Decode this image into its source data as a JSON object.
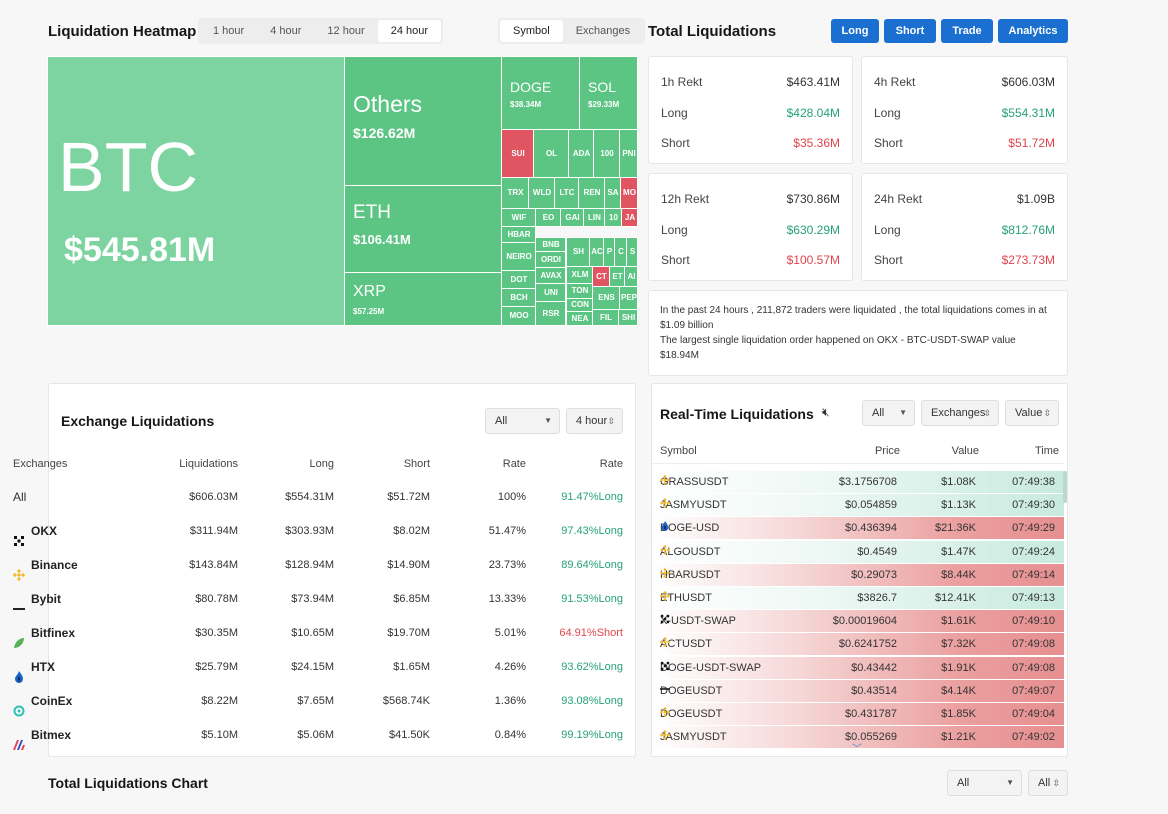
{
  "heatmap": {
    "title": "Liquidation Heatmap",
    "time_tabs": [
      "1 hour",
      "4 hour",
      "12 hour",
      "24 hour"
    ],
    "active_time": "24 hour",
    "mode_tabs": [
      "Symbol",
      "Exchanges"
    ],
    "active_mode": "Symbol",
    "tiles": {
      "btc": {
        "name": "BTC",
        "value": "$545.81M"
      },
      "others": {
        "name": "Others",
        "value": "$126.62M"
      },
      "eth": {
        "name": "ETH",
        "value": "$106.41M"
      },
      "xrp": {
        "name": "XRP",
        "value": "$57.25M"
      },
      "doge": {
        "name": "DOGE",
        "value": "$38.34M"
      },
      "sol": {
        "name": "SOL",
        "value": "$29.33M"
      },
      "small": [
        "SUI",
        "OL",
        "ADA",
        "100",
        "PNI",
        "TRX",
        "WLD",
        "LTC",
        "REN",
        "SA",
        "MO",
        "WIF",
        "EO",
        "GAI",
        "LIN",
        "10",
        "JA",
        "HBAR",
        "BNB",
        "SH",
        "AC",
        "P",
        "C",
        "S",
        "NEIRO",
        "ORDI",
        "XLM",
        "CT",
        "ET",
        "AI",
        "DOT",
        "AVAX",
        "TON",
        "ENS",
        "PEPE",
        "BCH",
        "UNI",
        "CON",
        "FIL",
        "MOO",
        "RSR",
        "NEA",
        "SHI"
      ]
    }
  },
  "total": {
    "title": "Total Liquidations",
    "buttons": [
      "Long",
      "Short",
      "Trade",
      "Analytics"
    ],
    "cards": [
      {
        "label": "1h Rekt",
        "total": "$463.41M",
        "long_label": "Long",
        "long": "$428.04M",
        "short_label": "Short",
        "short": "$35.36M"
      },
      {
        "label": "4h Rekt",
        "total": "$606.03M",
        "long_label": "Long",
        "long": "$554.31M",
        "short_label": "Short",
        "short": "$51.72M"
      },
      {
        "label": "12h Rekt",
        "total": "$730.86M",
        "long_label": "Long",
        "long": "$630.29M",
        "short_label": "Short",
        "short": "$100.57M"
      },
      {
        "label": "24h Rekt",
        "total": "$1.09B",
        "long_label": "Long",
        "long": "$812.76M",
        "short_label": "Short",
        "short": "$273.73M"
      }
    ],
    "summary_line1": "In the past 24 hours , 211,872 traders were liquidated , the total liquidations comes in at $1.09 billion",
    "summary_line2": "The largest single liquidation order happened on OKX - BTC-USDT-SWAP value $18.94M"
  },
  "exchange": {
    "title": "Exchange Liquidations",
    "filter": "All",
    "period": "4 hour",
    "headers": [
      "Exchanges",
      "Liquidations",
      "Long",
      "Short",
      "Rate",
      "Rate"
    ],
    "rows": [
      {
        "name": "All",
        "icon": "",
        "liq": "$606.03M",
        "long": "$554.31M",
        "short": "$51.72M",
        "rate": "100%",
        "rate2": "91.47%Long",
        "side": "long"
      },
      {
        "name": "OKX",
        "icon": "okx-icon",
        "liq": "$311.94M",
        "long": "$303.93M",
        "short": "$8.02M",
        "rate": "51.47%",
        "rate2": "97.43%Long",
        "side": "long"
      },
      {
        "name": "Binance",
        "icon": "binance-icon",
        "liq": "$143.84M",
        "long": "$128.94M",
        "short": "$14.90M",
        "rate": "23.73%",
        "rate2": "89.64%Long",
        "side": "long"
      },
      {
        "name": "Bybit",
        "icon": "bybit-icon",
        "liq": "$80.78M",
        "long": "$73.94M",
        "short": "$6.85M",
        "rate": "13.33%",
        "rate2": "91.53%Long",
        "side": "long"
      },
      {
        "name": "Bitfinex",
        "icon": "bitfinex-icon",
        "liq": "$30.35M",
        "long": "$10.65M",
        "short": "$19.70M",
        "rate": "5.01%",
        "rate2": "64.91%Short",
        "side": "short"
      },
      {
        "name": "HTX",
        "icon": "htx-icon",
        "liq": "$25.79M",
        "long": "$24.15M",
        "short": "$1.65M",
        "rate": "4.26%",
        "rate2": "93.62%Long",
        "side": "long"
      },
      {
        "name": "CoinEx",
        "icon": "coinex-icon",
        "liq": "$8.22M",
        "long": "$7.65M",
        "short": "$568.74K",
        "rate": "1.36%",
        "rate2": "93.08%Long",
        "side": "long"
      },
      {
        "name": "Bitmex",
        "icon": "bitmex-icon",
        "liq": "$5.10M",
        "long": "$5.06M",
        "short": "$41.50K",
        "rate": "0.84%",
        "rate2": "99.19%Long",
        "side": "long"
      }
    ]
  },
  "realtime": {
    "title": "Real-Time Liquidations",
    "filter_all": "All",
    "filter_exchanges": "Exchanges",
    "filter_value": "Value",
    "headers": [
      "Symbol",
      "Price",
      "Value",
      "Time"
    ],
    "rows": [
      {
        "symbol": "GRASSUSDT",
        "icon": "binance-icon",
        "price": "$3.1756708",
        "value": "$1.08K",
        "time": "07:49:38",
        "side": "long"
      },
      {
        "symbol": "JASMYUSDT",
        "icon": "binance-icon",
        "price": "$0.054859",
        "value": "$1.13K",
        "time": "07:49:30",
        "side": "long"
      },
      {
        "symbol": "DOGE-USD",
        "icon": "htx-icon",
        "price": "$0.436394",
        "value": "$21.36K",
        "time": "07:49:29",
        "side": "short"
      },
      {
        "symbol": "ALGOUSDT",
        "icon": "binance-icon",
        "price": "$0.4549",
        "value": "$1.47K",
        "time": "07:49:24",
        "side": "long"
      },
      {
        "symbol": "HBARUSDT",
        "icon": "binance-icon",
        "price": "$0.29073",
        "value": "$8.44K",
        "time": "07:49:14",
        "side": "short"
      },
      {
        "symbol": "ETHUSDT",
        "icon": "binance-icon",
        "price": "$3826.7",
        "value": "$12.41K",
        "time": "07:49:13",
        "side": "long"
      },
      {
        "symbol": "X-USDT-SWAP",
        "icon": "okx-icon",
        "price": "$0.00019604",
        "value": "$1.61K",
        "time": "07:49:10",
        "side": "short"
      },
      {
        "symbol": "ACTUSDT",
        "icon": "binance-icon",
        "price": "$0.6241752",
        "value": "$7.32K",
        "time": "07:49:08",
        "side": "short"
      },
      {
        "symbol": "DOGE-USDT-SWAP",
        "icon": "okx-icon",
        "price": "$0.43442",
        "value": "$1.91K",
        "time": "07:49:08",
        "side": "short"
      },
      {
        "symbol": "DOGEUSDT",
        "icon": "bybit-icon",
        "price": "$0.43514",
        "value": "$4.14K",
        "time": "07:49:07",
        "side": "short"
      },
      {
        "symbol": "DOGEUSDT",
        "icon": "binance-icon",
        "price": "$0.431787",
        "value": "$1.85K",
        "time": "07:49:04",
        "side": "short"
      },
      {
        "symbol": "JASMYUSDT",
        "icon": "binance-icon",
        "price": "$0.055269",
        "value": "$1.21K",
        "time": "07:49:02",
        "side": "short"
      }
    ]
  },
  "chart_section": {
    "title": "Total Liquidations Chart",
    "filter": "All",
    "filter2": "All"
  },
  "colors": {
    "green": "#26a17b",
    "red": "#e0444e",
    "tile_green": "#5cc584",
    "blue": "#1a6fd0"
  }
}
